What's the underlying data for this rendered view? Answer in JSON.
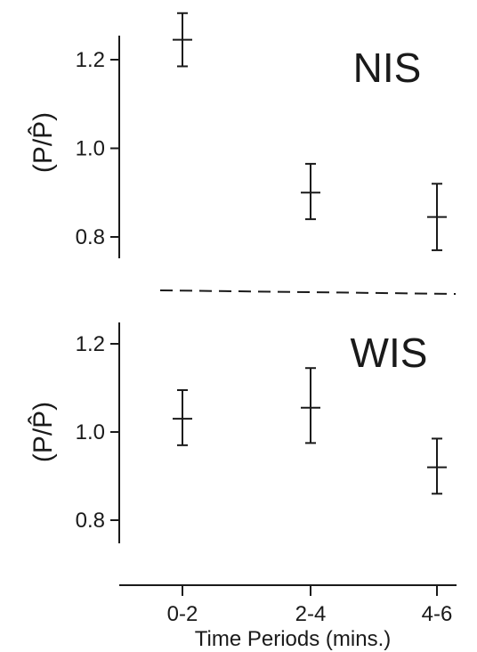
{
  "chart_data": [
    {
      "type": "scatter",
      "title": "NIS",
      "ylabel": "(P/P̂)",
      "ylim": [
        0.72,
        1.32
      ],
      "yticks": [
        0.8,
        1.0,
        1.2
      ],
      "ytick_labels": [
        "0.8",
        "1.0",
        "1.2"
      ],
      "categories": [
        "0-2",
        "2-4",
        "4-6"
      ],
      "values": [
        1.245,
        0.9,
        0.845
      ],
      "error_low": [
        1.185,
        0.84,
        0.77
      ],
      "error_high": [
        1.305,
        0.965,
        0.92
      ],
      "grid": false
    },
    {
      "type": "scatter",
      "title": "WIS",
      "ylabel": "(P/P̂)",
      "ylim": [
        0.72,
        1.27
      ],
      "yticks": [
        0.8,
        1.0,
        1.2
      ],
      "ytick_labels": [
        "0.8",
        "1.0",
        "1.2"
      ],
      "categories": [
        "0-2",
        "2-4",
        "4-6"
      ],
      "values": [
        1.03,
        1.055,
        0.92
      ],
      "error_low": [
        0.97,
        0.975,
        0.86
      ],
      "error_high": [
        1.095,
        1.145,
        0.985
      ],
      "grid": false
    }
  ],
  "x_axis": {
    "categories": [
      "0-2",
      "2-4",
      "4-6"
    ],
    "label": "Time Periods (mins.)"
  },
  "colors": {
    "ink": "#1a1a1a",
    "background": "#ffffff"
  }
}
